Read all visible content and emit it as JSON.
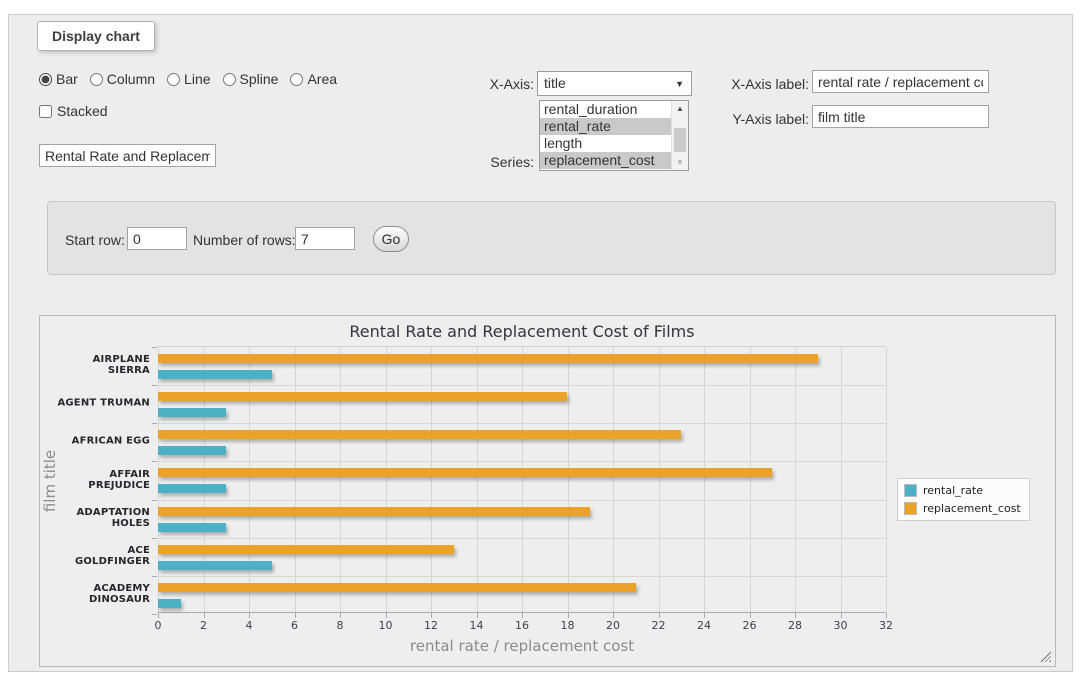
{
  "panel": {
    "legend": "Display chart"
  },
  "chart_type_options": [
    {
      "label": "Bar",
      "selected": true
    },
    {
      "label": "Column",
      "selected": false
    },
    {
      "label": "Line",
      "selected": false
    },
    {
      "label": "Spline",
      "selected": false
    },
    {
      "label": "Area",
      "selected": false
    }
  ],
  "stacked": {
    "label": "Stacked",
    "checked": false
  },
  "title_input": {
    "value": "Rental Rate and Replacemer"
  },
  "x_axis": {
    "label": "X-Axis:",
    "selected": "title",
    "arrow": "▼"
  },
  "series_select": {
    "label": "Series:",
    "options": [
      {
        "label": "rental_duration",
        "selected": false
      },
      {
        "label": "rental_rate",
        "selected": true
      },
      {
        "label": "length",
        "selected": false
      },
      {
        "label": "replacement_cost",
        "selected": true
      }
    ],
    "scroll_up": "▲",
    "scroll_down": "▼"
  },
  "x_axis_label": {
    "label": "X-Axis label:",
    "value": "rental rate / replacement cost"
  },
  "y_axis_label": {
    "label": "Y-Axis label:",
    "value": "film title"
  },
  "row_controls": {
    "start_row_label": "Start row:",
    "start_row_value": "0",
    "num_rows_label": "Number of rows:",
    "num_rows_value": "7",
    "go_label": "Go"
  },
  "chart_data": {
    "type": "bar",
    "orientation": "horizontal",
    "title": "Rental Rate and Replacement Cost of Films",
    "categories": [
      "AIRPLANE SIERRA",
      "AGENT TRUMAN",
      "AFRICAN EGG",
      "AFFAIR PREJUDICE",
      "ADAPTATION HOLES",
      "ACE GOLDFINGER",
      "ACADEMY DINOSAUR"
    ],
    "series": [
      {
        "name": "rental_rate",
        "color": "#4BB2C5",
        "values": [
          4.99,
          2.99,
          2.99,
          2.99,
          2.99,
          4.99,
          0.99
        ]
      },
      {
        "name": "replacement_cost",
        "color": "#EAA228",
        "values": [
          28.99,
          17.99,
          22.99,
          26.99,
          18.99,
          12.99,
          20.99
        ]
      }
    ],
    "xlabel": "rental rate / replacement cost",
    "ylabel": "film title",
    "xlim": [
      0,
      32
    ],
    "xticks": [
      0,
      2,
      4,
      6,
      8,
      10,
      12,
      14,
      16,
      18,
      20,
      22,
      24,
      26,
      28,
      30,
      32
    ],
    "grid": true,
    "legend_position": "right"
  }
}
